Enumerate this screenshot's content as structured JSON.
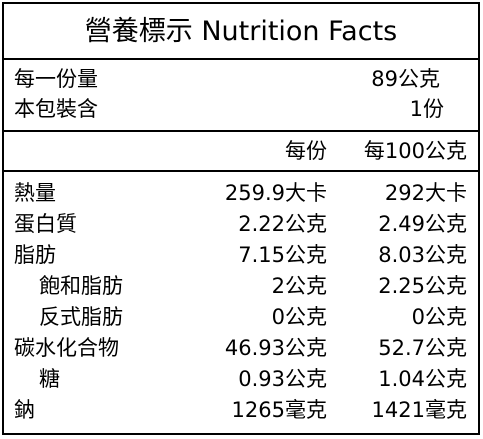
{
  "title": "營養標示 Nutrition Facts",
  "serving": {
    "size_label": "每一份量",
    "size_value": "89公克",
    "count_label": "本包裝含",
    "count_value": "1份"
  },
  "columns": {
    "per_serving": "每份",
    "per_100": "每100公克"
  },
  "nutrients": [
    {
      "name": "熱量",
      "per_serving": "259.9大卡",
      "per_100": "292大卡"
    },
    {
      "name": "蛋白質",
      "per_serving": "2.22公克",
      "per_100": "2.49公克"
    },
    {
      "name": "脂肪",
      "per_serving": "7.15公克",
      "per_100": "8.03公克"
    },
    {
      "name": "飽和脂肪",
      "per_serving": "2公克",
      "per_100": "2.25公克"
    },
    {
      "name": "反式脂肪",
      "per_serving": "0公克",
      "per_100": "0公克"
    },
    {
      "name": "碳水化合物",
      "per_serving": "46.93公克",
      "per_100": "52.7公克"
    },
    {
      "name": "糖",
      "per_serving": "0.93公克",
      "per_100": "1.04公克"
    },
    {
      "name": "鈉",
      "per_serving": "1265毫克",
      "per_100": "1421毫克"
    }
  ]
}
